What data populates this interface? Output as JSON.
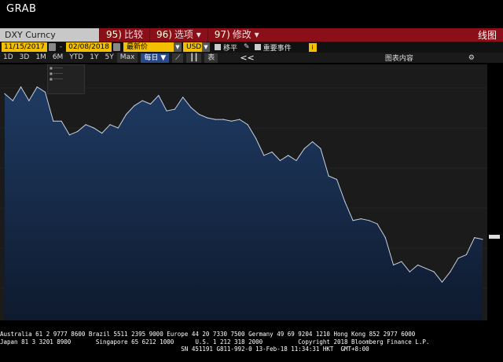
{
  "app": {
    "title": "GRAB"
  },
  "toolbar1": {
    "ticker": "DXY Curncy",
    "compare": {
      "num": "95)",
      "label": "比较"
    },
    "options": {
      "num": "96)",
      "label": "选项"
    },
    "modify": {
      "num": "97)",
      "label": "修改"
    },
    "chart_label": "线图"
  },
  "toolbar2": {
    "start_date": "11/15/2017",
    "end_date": "02/08/2018",
    "price_type": "最新价",
    "currency": "USD",
    "move_label": "移平",
    "events_label": "重要事件",
    "info": "i"
  },
  "toolbar3": {
    "timeframes": [
      "1D",
      "3D",
      "1M",
      "6M",
      "YTD",
      "1Y",
      "5Y",
      "Max"
    ],
    "selected_timeframe": "Max",
    "frequency": "每日",
    "table_label": "表",
    "nav": "<<",
    "chart_content_label": "图表内容",
    "settings_icon": "gear-icon"
  },
  "chart_data": {
    "type": "area",
    "series": [
      {
        "name": "DXY",
        "values": [
          94.4,
          94.2,
          94.6,
          94.2,
          94.6,
          94.45,
          93.6,
          93.6,
          93.2,
          93.3,
          93.5,
          93.4,
          93.25,
          93.5,
          93.4,
          93.8,
          94.05,
          94.2,
          94.1,
          94.35,
          93.9,
          93.95,
          94.3,
          94.0,
          93.8,
          93.7,
          93.65,
          93.65,
          93.6,
          93.65,
          93.5,
          93.1,
          92.6,
          92.7,
          92.45,
          92.6,
          92.45,
          92.8,
          93.0,
          92.8,
          92.0,
          91.9,
          91.25,
          90.7,
          90.75,
          90.7,
          90.6,
          90.2,
          89.4,
          89.5,
          89.2,
          89.4,
          89.3,
          89.2,
          88.9,
          89.2,
          89.6,
          89.7,
          90.2,
          90.15
        ]
      }
    ],
    "colors": {
      "area_top": "#1f3a62",
      "area_bottom": "#0e1a2e",
      "line": "#c8d0e0",
      "plot_bg": "#1b1b1b"
    }
  },
  "footer": {
    "line1": "Australia 61 2 9777 8600 Brazil 5511 2395 9000 Europe 44 20 7330 7500 Germany 49 69 9204 1210 Hong Kong 852 2977 6000",
    "line2": "Japan 81 3 3201 8900       Singapore 65 6212 1000      U.S. 1 212 318 2000          Copyright 2018 Bloomberg Finance L.P.",
    "line3": "                                                   SN 451191 G811-992-0 13-Feb-18 11:34:31 HKT  GMT+8:00"
  }
}
